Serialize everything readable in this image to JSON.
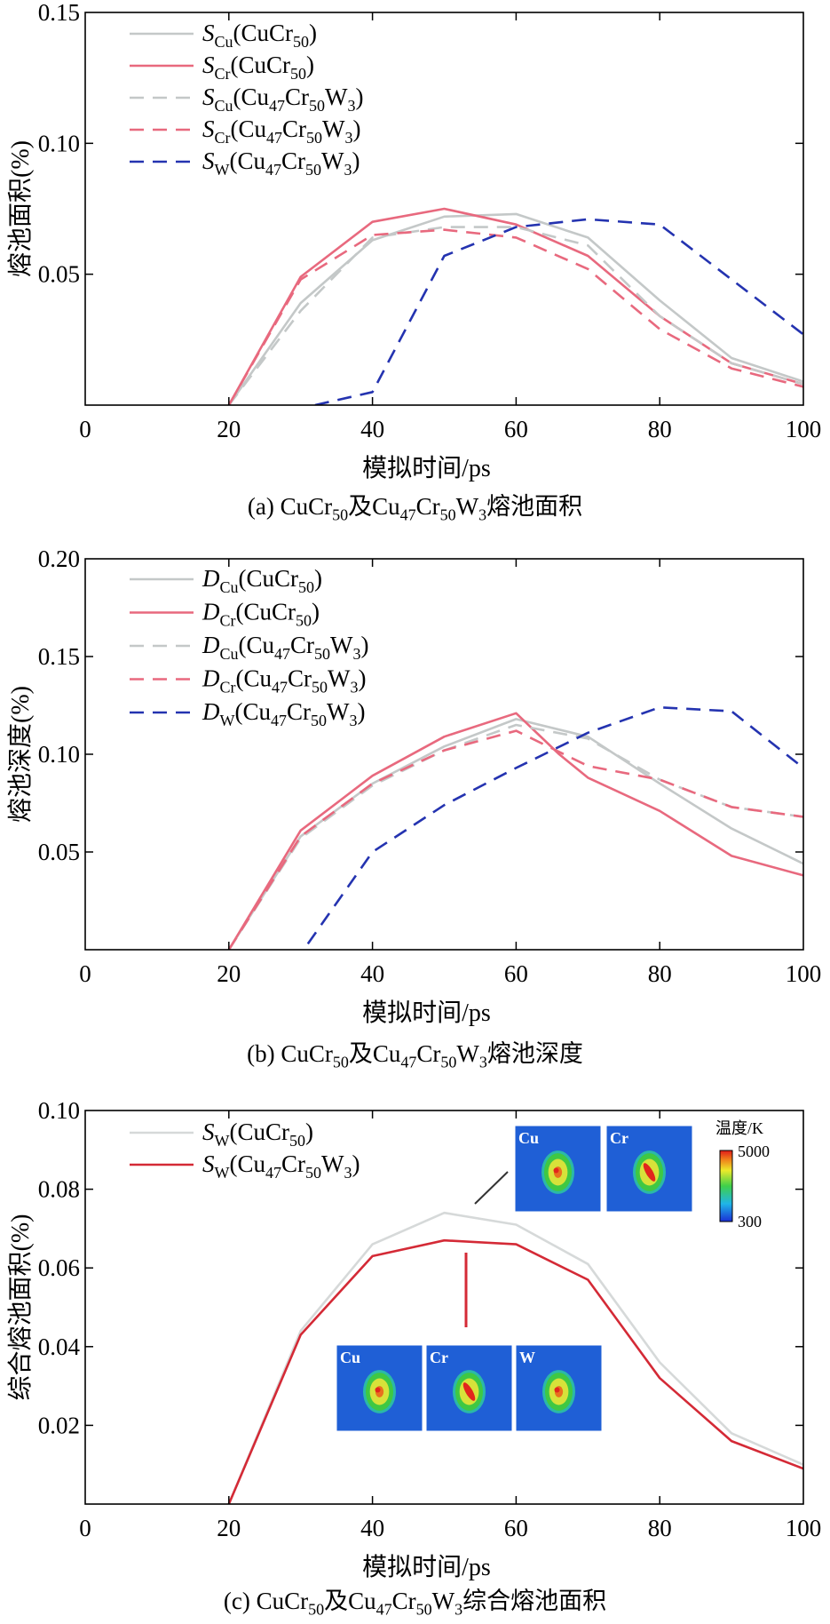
{
  "chart_data": [
    {
      "type": "line",
      "ylabel": "熔池面积(%)",
      "xlabel": "模拟时间/ps",
      "caption": "(a) CuCr50及Cu47Cr50W3熔池面积",
      "xlim": [
        0,
        100
      ],
      "ylim": [
        0,
        0.15
      ],
      "xticks": [
        "0",
        "20",
        "40",
        "60",
        "80",
        "100"
      ],
      "yticks": [
        "0.05",
        "0.10",
        "0.15"
      ],
      "legend_position": "top-left",
      "series": [
        {
          "name": "SCu(CuCr50)",
          "color": "#c4c8c8",
          "dash": false,
          "x": [
            20,
            30,
            40,
            50,
            60,
            70,
            80,
            90,
            100
          ],
          "y": [
            0,
            0.039,
            0.063,
            0.072,
            0.073,
            0.064,
            0.04,
            0.018,
            0.009
          ]
        },
        {
          "name": "SCr(CuCr50)",
          "color": "#e8697e",
          "dash": false,
          "x": [
            20,
            30,
            40,
            50,
            60,
            70,
            80,
            90,
            100
          ],
          "y": [
            0,
            0.049,
            0.07,
            0.075,
            0.069,
            0.057,
            0.034,
            0.016,
            0.008
          ]
        },
        {
          "name": "SCu(Cu47Cr50W3)",
          "color": "#c4c8c8",
          "dash": true,
          "x": [
            20,
            30,
            40,
            50,
            60,
            70,
            80,
            90,
            100
          ],
          "y": [
            0,
            0.036,
            0.064,
            0.068,
            0.068,
            0.061,
            0.034,
            0.016,
            0.008
          ]
        },
        {
          "name": "SCr(Cu47Cr50W3)",
          "color": "#e8697e",
          "dash": true,
          "x": [
            20,
            30,
            40,
            50,
            60,
            70,
            80,
            90,
            100
          ],
          "y": [
            0,
            0.048,
            0.065,
            0.067,
            0.064,
            0.052,
            0.029,
            0.014,
            0.007
          ]
        },
        {
          "name": "SW(Cu47Cr50W3)",
          "color": "#2433b0",
          "dash": true,
          "x": [
            32,
            40,
            50,
            60,
            70,
            80,
            90,
            100
          ],
          "y": [
            0,
            0.005,
            0.057,
            0.068,
            0.071,
            0.069,
            0.048,
            0.027
          ]
        }
      ],
      "legend": [
        {
          "sym": "S",
          "sub1": "Cu",
          "mid": "(CuCr",
          "sub2": "50",
          "end": ")"
        },
        {
          "sym": "S",
          "sub1": "Cr",
          "mid": "(CuCr",
          "sub2": "50",
          "end": ")"
        },
        {
          "sym": "S",
          "sub1": "Cu",
          "mid": "(Cu",
          "sub2": "47",
          "mid2": "Cr",
          "sub3": "50",
          "mid3": "W",
          "sub4": "3",
          "end": ")"
        },
        {
          "sym": "S",
          "sub1": "Cr",
          "mid": "(Cu",
          "sub2": "47",
          "mid2": "Cr",
          "sub3": "50",
          "mid3": "W",
          "sub4": "3",
          "end": ")"
        },
        {
          "sym": "S",
          "sub1": "W",
          "mid": "(Cu",
          "sub2": "47",
          "mid2": "Cr",
          "sub3": "50",
          "mid3": "W",
          "sub4": "3",
          "end": ")"
        }
      ]
    },
    {
      "type": "line",
      "ylabel": "熔池深度(%)",
      "xlabel": "模拟时间/ps",
      "caption": "(b) CuCr50及Cu47Cr50W3熔池深度",
      "xlim": [
        0,
        100
      ],
      "ylim": [
        0,
        0.2
      ],
      "xticks": [
        "0",
        "20",
        "40",
        "60",
        "80",
        "100"
      ],
      "yticks": [
        "0.05",
        "0.10",
        "0.15",
        "0.20"
      ],
      "legend_position": "top-left",
      "series": [
        {
          "name": "DCu(CuCr50)",
          "color": "#c4c8c8",
          "dash": false,
          "x": [
            20,
            30,
            40,
            50,
            60,
            70,
            80,
            90,
            100
          ],
          "y": [
            0,
            0.058,
            0.085,
            0.104,
            0.118,
            0.109,
            0.085,
            0.062,
            0.044
          ]
        },
        {
          "name": "DCr(CuCr50)",
          "color": "#e8697e",
          "dash": false,
          "x": [
            20,
            30,
            40,
            50,
            60,
            66,
            70,
            80,
            90,
            100
          ],
          "y": [
            0,
            0.061,
            0.089,
            0.109,
            0.121,
            0.1,
            0.088,
            0.071,
            0.048,
            0.038
          ]
        },
        {
          "name": "DCu(Cu47Cr50W3)",
          "color": "#c4c8c8",
          "dash": true,
          "x": [
            20,
            30,
            40,
            50,
            60,
            70,
            80,
            90,
            100
          ],
          "y": [
            0,
            0.057,
            0.084,
            0.102,
            0.115,
            0.108,
            0.087,
            0.073,
            0.068
          ]
        },
        {
          "name": "DCr(Cu47Cr50W3)",
          "color": "#e8697e",
          "dash": true,
          "x": [
            20,
            30,
            40,
            50,
            60,
            70,
            80,
            90,
            100
          ],
          "y": [
            0,
            0.058,
            0.085,
            0.102,
            0.112,
            0.094,
            0.087,
            0.073,
            0.068
          ]
        },
        {
          "name": "DW(Cu47Cr50W3)",
          "color": "#2433b0",
          "dash": true,
          "x": [
            31,
            40,
            50,
            60,
            70,
            80,
            90,
            100
          ],
          "y": [
            0.003,
            0.05,
            0.074,
            0.093,
            0.111,
            0.124,
            0.122,
            0.093
          ]
        }
      ],
      "legend": [
        {
          "sym": "D",
          "sub1": "Cu",
          "mid": "(CuCr",
          "sub2": "50",
          "end": ")"
        },
        {
          "sym": "D",
          "sub1": "Cr",
          "mid": "(CuCr",
          "sub2": "50",
          "end": ")"
        },
        {
          "sym": "D",
          "sub1": "Cu",
          "mid": "(Cu",
          "sub2": "47",
          "mid2": "Cr",
          "sub3": "50",
          "mid3": "W",
          "sub4": "3",
          "end": ")"
        },
        {
          "sym": "D",
          "sub1": "Cr",
          "mid": "(Cu",
          "sub2": "47",
          "mid2": "Cr",
          "sub3": "50",
          "mid3": "W",
          "sub4": "3",
          "end": ")"
        },
        {
          "sym": "D",
          "sub1": "W",
          "mid": "(Cu",
          "sub2": "47",
          "mid2": "Cr",
          "sub3": "50",
          "mid3": "W",
          "sub4": "3",
          "end": ")"
        }
      ]
    },
    {
      "type": "line",
      "ylabel": "综合熔池面积(%)",
      "xlabel": "模拟时间/ps",
      "caption": "(c) CuCr50及Cu47Cr50W3综合熔池面积",
      "xlim": [
        0,
        100
      ],
      "ylim": [
        0,
        0.1
      ],
      "xticks": [
        "0",
        "20",
        "40",
        "60",
        "80",
        "100"
      ],
      "yticks": [
        "0.02",
        "0.04",
        "0.06",
        "0.08",
        "0.10"
      ],
      "legend_position": "top-left",
      "series": [
        {
          "name": "SW(CuCr50)",
          "color": "#d6d9d9",
          "dash": false,
          "x": [
            20,
            30,
            40,
            50,
            60,
            70,
            80,
            90,
            100
          ],
          "y": [
            0,
            0.044,
            0.066,
            0.074,
            0.071,
            0.061,
            0.036,
            0.018,
            0.01
          ]
        },
        {
          "name": "SW(Cu47Cr50W3)",
          "color": "#d42a36",
          "dash": false,
          "x": [
            20,
            30,
            40,
            50,
            60,
            70,
            80,
            90,
            100
          ],
          "y": [
            0,
            0.043,
            0.063,
            0.067,
            0.066,
            0.057,
            0.032,
            0.016,
            0.009
          ]
        }
      ],
      "legend": [
        {
          "sym": "S",
          "sub1": "W",
          "mid": "(CuCr",
          "sub2": "50",
          "end": ")"
        },
        {
          "sym": "S",
          "sub1": "W",
          "mid": "(Cu",
          "sub2": "47",
          "mid2": "Cr",
          "sub3": "50",
          "mid3": "W",
          "sub4": "3",
          "end": ")"
        }
      ],
      "insets": {
        "top_labels": [
          "Cu",
          "Cr"
        ],
        "bottom_labels": [
          "Cu",
          "Cr",
          "W"
        ],
        "colorbar_title": "温度/K",
        "colorbar_max": "5000",
        "colorbar_min": "300"
      }
    }
  ]
}
